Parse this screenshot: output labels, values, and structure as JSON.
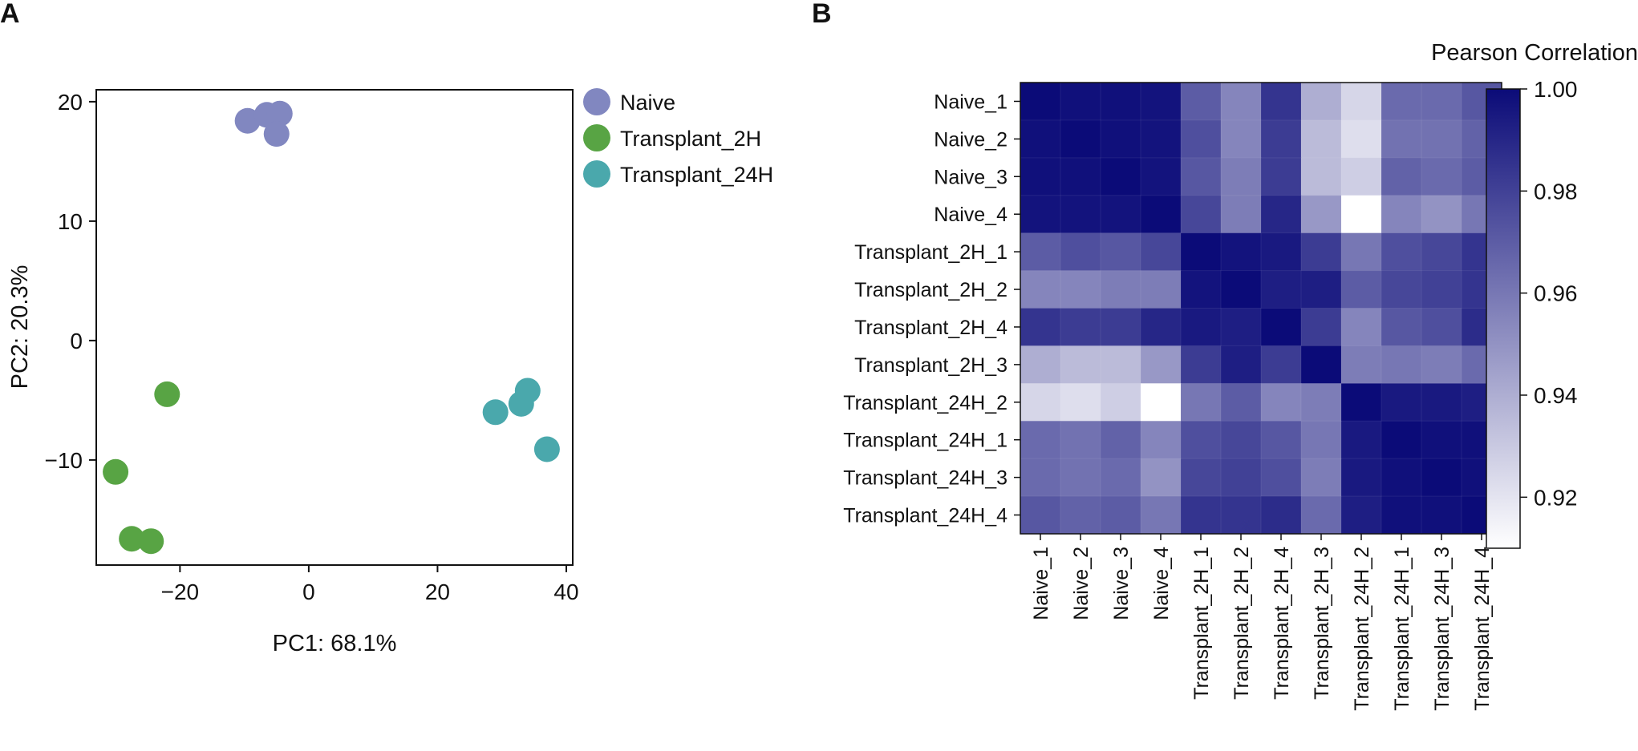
{
  "panels": {
    "a": "A",
    "b": "B"
  },
  "colors": {
    "Naive": "#8187c0",
    "Transplant_2H": "#58a444",
    "Transplant_24H": "#4aa8ac",
    "heatmap_low": "#ffffff",
    "heatmap_high": "#0b0b78"
  },
  "chart_data": [
    {
      "type": "scatter",
      "panel": "A",
      "xlabel": "PC1: 68.1%",
      "ylabel": "PC2: 20.3%",
      "xlim": [
        -33,
        41
      ],
      "ylim": [
        -18.8,
        21
      ],
      "xticks": [
        -20,
        0,
        20,
        40
      ],
      "yticks": [
        -10,
        0,
        10,
        20
      ],
      "xtick_labels": [
        "−20",
        "0",
        "20",
        "40"
      ],
      "ytick_labels": [
        "−10",
        "0",
        "10",
        "20"
      ],
      "legend": {
        "position": "outside-right",
        "entries": [
          "Naive",
          "Transplant_2H",
          "Transplant_24H"
        ]
      },
      "series": [
        {
          "name": "Naive",
          "points": [
            [
              -9.5,
              18.4
            ],
            [
              -6.5,
              18.9
            ],
            [
              -4.5,
              19.0
            ],
            [
              -5.0,
              17.3
            ]
          ]
        },
        {
          "name": "Transplant_2H",
          "points": [
            [
              -22.0,
              -4.5
            ],
            [
              -30.0,
              -11.0
            ],
            [
              -27.5,
              -16.6
            ],
            [
              -24.5,
              -16.8
            ]
          ]
        },
        {
          "name": "Transplant_24H",
          "points": [
            [
              29.0,
              -6.0
            ],
            [
              33.0,
              -5.3
            ],
            [
              34.0,
              -4.2
            ],
            [
              37.0,
              -9.1
            ]
          ]
        }
      ]
    },
    {
      "type": "heatmap",
      "panel": "B",
      "title": "Pearson Correlation",
      "colorbar": {
        "min": 0.91,
        "max": 1.0,
        "ticks": [
          1.0,
          0.98,
          0.96,
          0.94,
          0.92
        ],
        "tick_labels": [
          "1.00",
          "0.98",
          "0.96",
          "0.94",
          "0.92"
        ]
      },
      "rows": [
        "Naive_1",
        "Naive_2",
        "Naive_3",
        "Naive_4",
        "Transplant_2H_1",
        "Transplant_2H_2",
        "Transplant_2H_4",
        "Transplant_2H_3",
        "Transplant_24H_2",
        "Transplant_24H_1",
        "Transplant_24H_3",
        "Transplant_24H_4"
      ],
      "cols": [
        "Naive_1",
        "Naive_2",
        "Naive_3",
        "Naive_4",
        "Transplant_2H_1",
        "Transplant_2H_2",
        "Transplant_2H_4",
        "Transplant_2H_3",
        "Transplant_24H_2",
        "Transplant_24H_1",
        "Transplant_24H_3",
        "Transplant_24H_4"
      ],
      "values": [
        [
          1.0,
          0.998,
          0.998,
          0.997,
          0.97,
          0.955,
          0.985,
          0.94,
          0.925,
          0.965,
          0.965,
          0.972
        ],
        [
          0.998,
          1.0,
          0.998,
          0.997,
          0.975,
          0.955,
          0.982,
          0.935,
          0.922,
          0.962,
          0.962,
          0.968
        ],
        [
          0.998,
          0.998,
          1.0,
          0.997,
          0.972,
          0.958,
          0.982,
          0.935,
          0.928,
          0.968,
          0.965,
          0.97
        ],
        [
          0.997,
          0.997,
          0.997,
          1.0,
          0.978,
          0.958,
          0.99,
          0.948,
          0.91,
          0.955,
          0.95,
          0.96
        ],
        [
          0.97,
          0.975,
          0.972,
          0.978,
          1.0,
          0.997,
          0.995,
          0.982,
          0.96,
          0.975,
          0.978,
          0.985
        ],
        [
          0.955,
          0.955,
          0.958,
          0.958,
          0.997,
          1.0,
          0.993,
          0.993,
          0.97,
          0.978,
          0.98,
          0.985
        ],
        [
          0.985,
          0.982,
          0.982,
          0.99,
          0.995,
          0.993,
          1.0,
          0.982,
          0.955,
          0.972,
          0.975,
          0.988
        ],
        [
          0.94,
          0.935,
          0.935,
          0.948,
          0.982,
          0.993,
          0.982,
          1.0,
          0.958,
          0.96,
          0.958,
          0.965
        ],
        [
          0.925,
          0.922,
          0.928,
          0.91,
          0.96,
          0.97,
          0.955,
          0.958,
          1.0,
          0.995,
          0.995,
          0.993
        ],
        [
          0.965,
          0.962,
          0.968,
          0.955,
          0.975,
          0.978,
          0.972,
          0.96,
          0.995,
          1.0,
          0.998,
          0.998
        ],
        [
          0.965,
          0.962,
          0.965,
          0.95,
          0.978,
          0.98,
          0.975,
          0.958,
          0.995,
          0.998,
          1.0,
          0.998
        ],
        [
          0.972,
          0.968,
          0.97,
          0.96,
          0.985,
          0.985,
          0.988,
          0.965,
          0.993,
          0.998,
          0.998,
          1.0
        ]
      ]
    }
  ]
}
